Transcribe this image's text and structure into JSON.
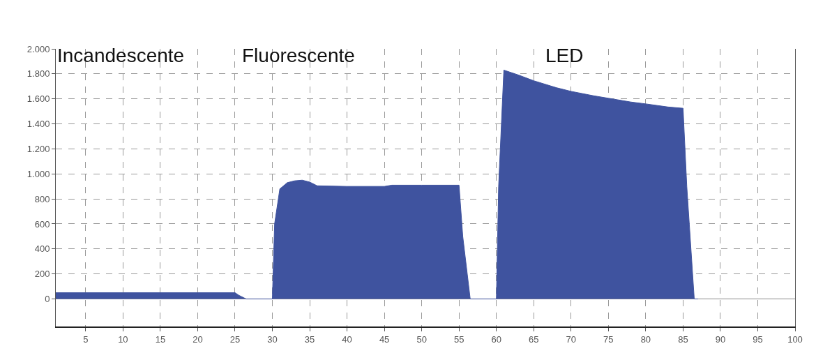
{
  "chart_data": {
    "type": "area",
    "x": [
      1,
      5,
      10,
      15,
      20,
      25,
      25.5,
      26.5,
      30,
      30.3,
      31,
      32,
      33,
      34,
      35,
      36,
      40,
      45,
      46,
      50,
      55,
      55.5,
      56.5,
      60,
      60.3,
      61,
      63,
      65,
      68,
      70,
      73,
      75,
      78,
      80,
      83,
      85,
      85.5,
      86.5,
      87
    ],
    "series": [
      {
        "color": "#3f539f",
        "values": [
          50,
          50,
          50,
          50,
          50,
          50,
          30,
          0,
          0,
          600,
          880,
          930,
          945,
          950,
          935,
          905,
          900,
          900,
          910,
          910,
          910,
          500,
          0,
          0,
          900,
          1830,
          1790,
          1745,
          1690,
          1660,
          1625,
          1605,
          1575,
          1560,
          1535,
          1525,
          900,
          0,
          0
        ]
      }
    ],
    "xlim": [
      1,
      100
    ],
    "xticks": [
      5,
      10,
      15,
      20,
      25,
      30,
      35,
      40,
      45,
      50,
      55,
      60,
      65,
      70,
      75,
      80,
      85,
      90,
      95,
      100
    ],
    "ylim": [
      -220,
      2000
    ],
    "yticks": [
      0,
      200,
      400,
      600,
      800,
      {
        "value": 1000,
        "label": "1.000"
      },
      {
        "value": 1200,
        "label": "1.200"
      },
      {
        "value": 1400,
        "label": "1.400"
      },
      {
        "value": 1600,
        "label": "1.600"
      },
      {
        "value": 1800,
        "label": "1.800"
      },
      {
        "value": 2000,
        "label": "2.000"
      }
    ],
    "grid": true,
    "annotations": [
      "Incandescente",
      "Fluorescente",
      "LED"
    ]
  }
}
